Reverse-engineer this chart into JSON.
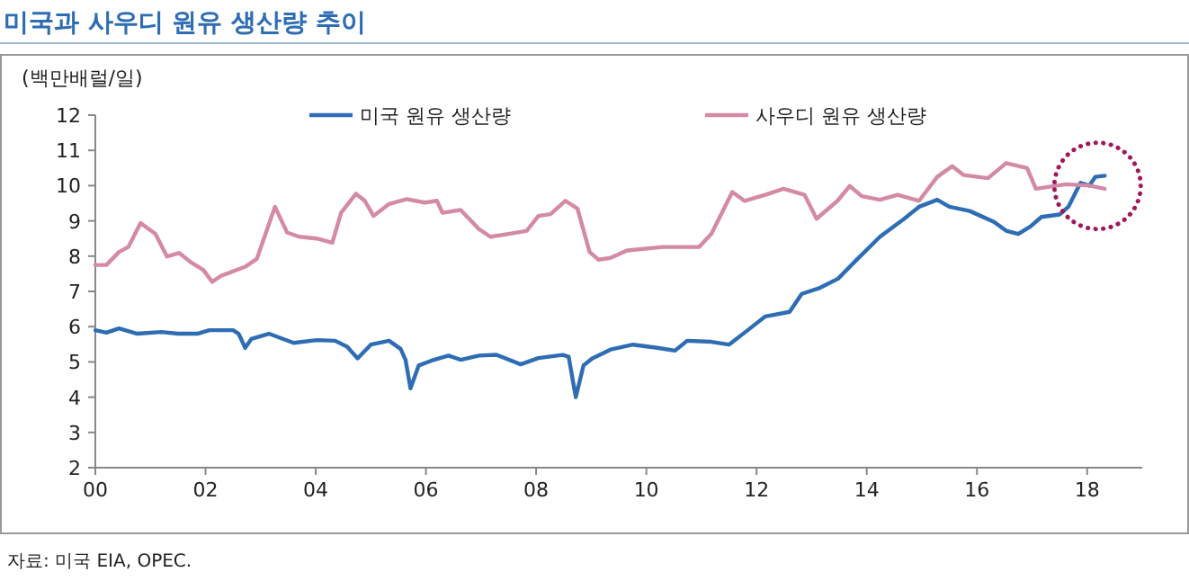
{
  "chart_data": {
    "type": "line",
    "title": "미국과 사우디 원유 생산량 추이",
    "ylabel": "(백만배럴/일)",
    "annotations": [
      "자료: 미국 EIA, OPEC."
    ],
    "xlim": [
      2000,
      2019
    ],
    "xticks": [
      {
        "value": 2000,
        "label": "00"
      },
      {
        "value": 2002,
        "label": "02"
      },
      {
        "value": 2004,
        "label": "04"
      },
      {
        "value": 2006,
        "label": "06"
      },
      {
        "value": 2008,
        "label": "08"
      },
      {
        "value": 2010,
        "label": "10"
      },
      {
        "value": 2012,
        "label": "12"
      },
      {
        "value": 2014,
        "label": "14"
      },
      {
        "value": 2016,
        "label": "16"
      },
      {
        "value": 2018,
        "label": "18"
      }
    ],
    "ylim": [
      2,
      12
    ],
    "yticks": [
      2,
      3,
      4,
      5,
      6,
      7,
      8,
      9,
      10,
      11,
      12
    ],
    "legend": "top",
    "grid": false,
    "marker": "none",
    "line_style": "solid",
    "series": [
      {
        "name": "미국 원유 생산량",
        "color": "#2e6db4",
        "x": [
          2000.0,
          2000.2,
          2000.43,
          2000.76,
          2001.2,
          2001.5,
          2001.85,
          2002.07,
          2002.5,
          2002.6,
          2002.72,
          2002.83,
          2003.15,
          2003.6,
          2004.02,
          2004.35,
          2004.57,
          2004.76,
          2005.0,
          2005.33,
          2005.54,
          2005.63,
          2005.72,
          2005.87,
          2006.09,
          2006.41,
          2006.63,
          2006.96,
          2007.28,
          2007.72,
          2008.04,
          2008.48,
          2008.59,
          2008.72,
          2008.86,
          2009.02,
          2009.35,
          2009.76,
          2010.2,
          2010.52,
          2010.74,
          2011.18,
          2011.5,
          2011.84,
          2012.16,
          2012.6,
          2012.82,
          2013.15,
          2013.48,
          2013.8,
          2014.24,
          2014.68,
          2014.95,
          2015.28,
          2015.5,
          2015.87,
          2016.31,
          2016.53,
          2016.75,
          2016.97,
          2017.17,
          2017.5,
          2017.66,
          2017.88,
          2018.04,
          2018.15,
          2018.32
        ],
        "values": [
          5.9,
          5.83,
          5.95,
          5.8,
          5.85,
          5.8,
          5.8,
          5.9,
          5.9,
          5.8,
          5.4,
          5.65,
          5.8,
          5.54,
          5.62,
          5.6,
          5.43,
          5.1,
          5.49,
          5.6,
          5.37,
          5.06,
          4.25,
          4.9,
          5.03,
          5.18,
          5.06,
          5.18,
          5.2,
          4.93,
          5.11,
          5.2,
          5.15,
          4.0,
          4.9,
          5.1,
          5.35,
          5.49,
          5.4,
          5.32,
          5.6,
          5.57,
          5.49,
          5.9,
          6.29,
          6.42,
          6.93,
          7.1,
          7.36,
          7.87,
          8.55,
          9.06,
          9.4,
          9.6,
          9.4,
          9.28,
          8.97,
          8.72,
          8.63,
          8.84,
          9.11,
          9.18,
          9.4,
          10.08,
          10.0,
          10.25,
          10.28
        ]
      },
      {
        "name": "사우디 원유 생산량",
        "color": "#d48aa5",
        "x": [
          2000.0,
          2000.2,
          2000.43,
          2000.6,
          2000.82,
          2001.09,
          2001.3,
          2001.52,
          2001.74,
          2001.96,
          2002.12,
          2002.28,
          2002.72,
          2002.93,
          2003.26,
          2003.48,
          2003.7,
          2004.02,
          2004.3,
          2004.46,
          2004.73,
          2004.89,
          2005.05,
          2005.33,
          2005.65,
          2005.98,
          2006.2,
          2006.3,
          2006.63,
          2006.96,
          2007.17,
          2007.5,
          2007.83,
          2008.04,
          2008.26,
          2008.53,
          2008.75,
          2008.97,
          2009.13,
          2009.35,
          2009.65,
          2010.3,
          2010.96,
          2011.18,
          2011.56,
          2011.78,
          2012.16,
          2012.49,
          2012.87,
          2013.09,
          2013.47,
          2013.69,
          2013.91,
          2014.24,
          2014.56,
          2014.95,
          2015.28,
          2015.55,
          2015.76,
          2016.2,
          2016.53,
          2016.91,
          2017.07,
          2017.62,
          2018.04,
          2018.32
        ],
        "values": [
          7.75,
          7.75,
          8.12,
          8.26,
          8.94,
          8.63,
          7.99,
          8.09,
          7.82,
          7.61,
          7.27,
          7.44,
          7.7,
          7.92,
          9.4,
          8.67,
          8.55,
          8.5,
          8.38,
          9.23,
          9.77,
          9.57,
          9.14,
          9.48,
          9.62,
          9.52,
          9.57,
          9.23,
          9.31,
          8.77,
          8.55,
          8.63,
          8.72,
          9.14,
          9.19,
          9.57,
          9.35,
          8.12,
          7.9,
          7.95,
          8.16,
          8.26,
          8.26,
          8.63,
          9.82,
          9.57,
          9.74,
          9.91,
          9.74,
          9.06,
          9.57,
          9.99,
          9.7,
          9.6,
          9.74,
          9.57,
          10.25,
          10.55,
          10.3,
          10.21,
          10.64,
          10.5,
          9.91,
          10.04,
          10.0,
          9.91
        ]
      }
    ]
  }
}
